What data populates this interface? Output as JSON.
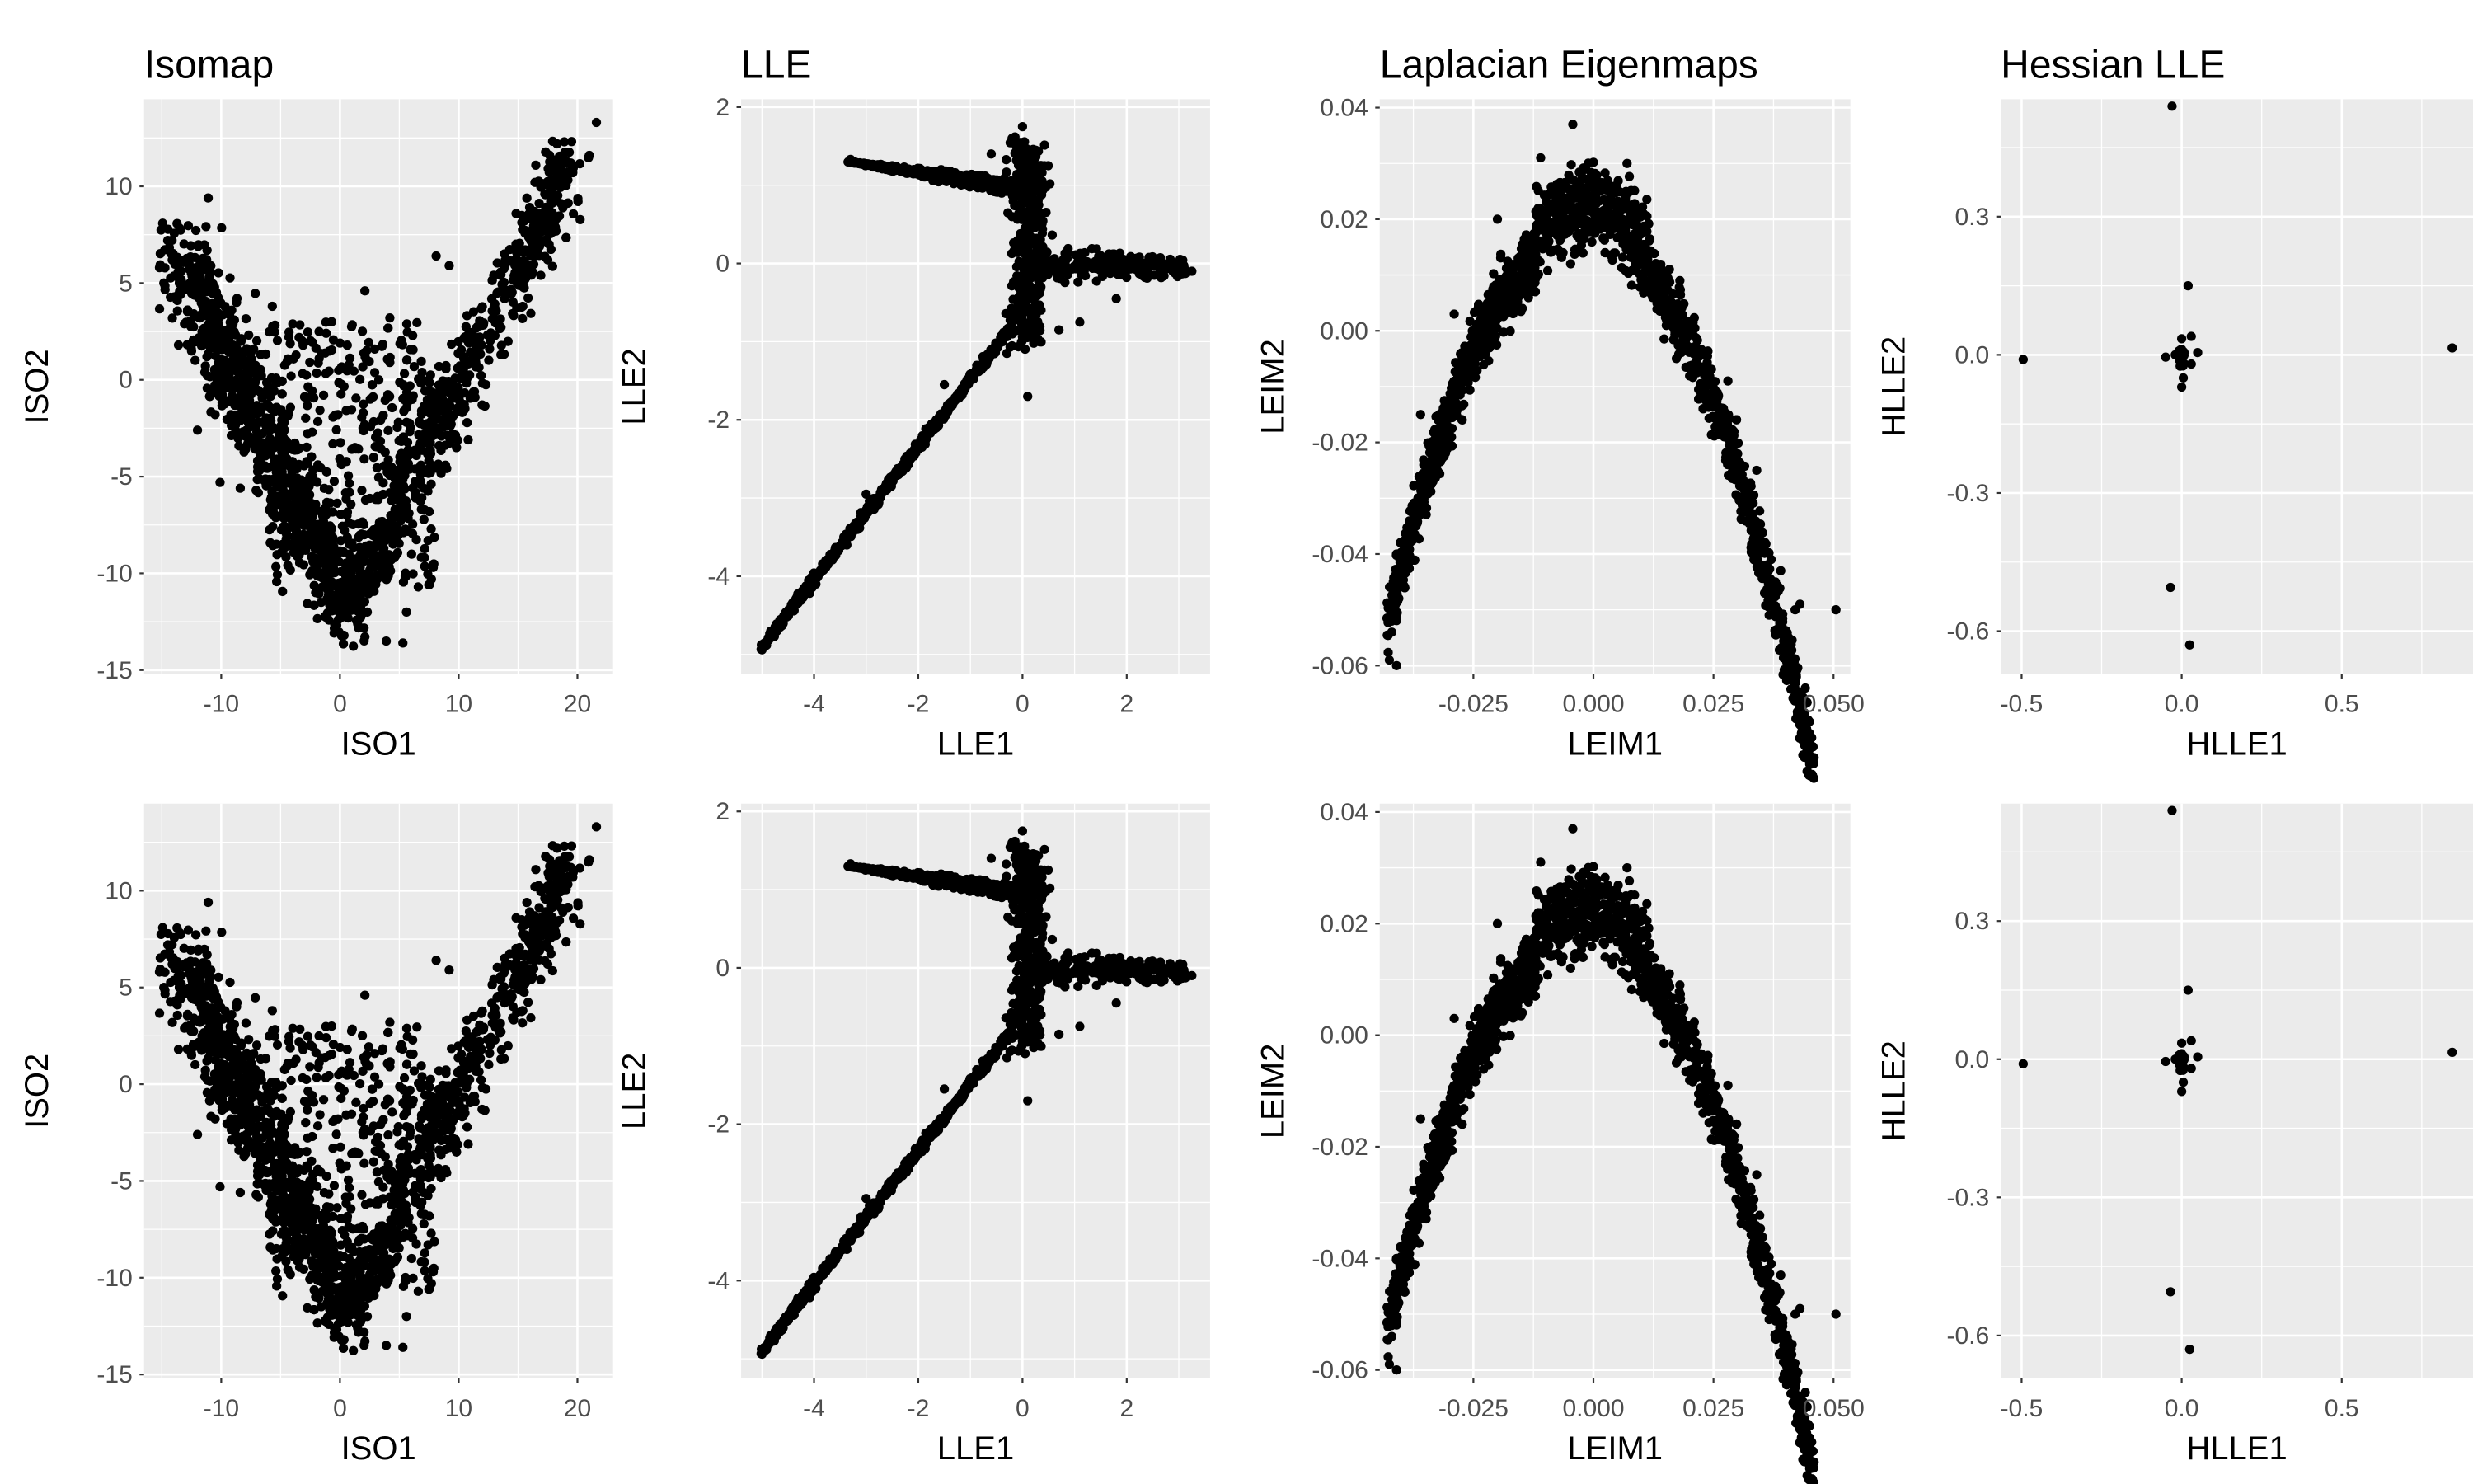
{
  "chart_data": [
    {
      "type": "scatter",
      "title": "Isomap",
      "kind": "isomap",
      "xlabel": "ISO1",
      "ylabel": "ISO2",
      "xlim": [
        -16.5,
        23
      ],
      "ylim": [
        -15.2,
        14.5
      ],
      "xticks": [
        -10,
        0,
        10,
        20
      ],
      "xtick_labels": [
        "-10",
        "0",
        "10",
        "20"
      ],
      "yticks": [
        -15,
        -10,
        -5,
        0,
        5,
        10
      ],
      "ytick_labels": [
        "-15",
        "-10",
        "-5",
        "0",
        "5",
        "10"
      ],
      "grid": true,
      "legend": "none",
      "point_color": "#000000",
      "points": [
        [
          -15.2,
          5.8
        ],
        [
          -13.6,
          1.8
        ],
        [
          -12.0,
          -2.6
        ],
        [
          -11.1,
          9.4
        ],
        [
          -10.1,
          -5.3
        ],
        [
          -8.4,
          -5.6
        ],
        [
          -5.7,
          3.8
        ],
        [
          -3.2,
          -8.7
        ],
        [
          -0.7,
          3.0
        ],
        [
          1.0,
          -11.2
        ],
        [
          2.3,
          -12.0
        ],
        [
          2.1,
          4.6
        ],
        [
          3.9,
          -13.5
        ],
        [
          4.2,
          3.2
        ],
        [
          4.2,
          0.9
        ],
        [
          5.3,
          -13.6
        ],
        [
          5.6,
          -12.0
        ],
        [
          7.7,
          -10.3
        ],
        [
          8.1,
          6.4
        ],
        [
          9.2,
          5.9
        ],
        [
          10.8,
          -3.1
        ],
        [
          12.6,
          1.6
        ],
        [
          15.4,
          3.8
        ],
        [
          17.5,
          6.2
        ],
        [
          18.9,
          12.3
        ],
        [
          21.0,
          11.6
        ],
        [
          21.6,
          13.3
        ]
      ]
    },
    {
      "type": "scatter",
      "title": "LLE",
      "kind": "lle",
      "xlabel": "LLE1",
      "ylabel": "LLE2",
      "xlim": [
        -5.4,
        3.6
      ],
      "ylim": [
        -5.25,
        2.1
      ],
      "xticks": [
        -4,
        -2,
        0,
        2
      ],
      "xtick_labels": [
        "-4",
        "-2",
        "0",
        "2"
      ],
      "yticks": [
        -4,
        -2,
        0,
        2
      ],
      "ytick_labels": [
        "-4",
        "-2",
        "0",
        "2"
      ],
      "grid": true,
      "legend": "none",
      "point_color": "#000000",
      "points": [
        [
          -5.0,
          -4.9
        ],
        [
          -3.0,
          -2.95
        ],
        [
          -1.5,
          -1.55
        ],
        [
          -3.3,
          1.33
        ],
        [
          -2.5,
          1.25
        ],
        [
          -1.5,
          1.1
        ],
        [
          -0.6,
          1.4
        ],
        [
          -0.2,
          1.6
        ],
        [
          0.0,
          1.75
        ],
        [
          1.5,
          0.1
        ],
        [
          2.2,
          -0.05
        ],
        [
          3.1,
          -0.1
        ],
        [
          3.25,
          -0.1
        ],
        [
          1.8,
          -0.45
        ],
        [
          1.1,
          -0.75
        ],
        [
          0.7,
          -0.85
        ],
        [
          0.1,
          -1.7
        ],
        [
          -0.3,
          -1.15
        ]
      ]
    },
    {
      "type": "scatter",
      "title": "Laplacian Eigenmaps",
      "kind": "leim",
      "xlabel": "LEIM1",
      "ylabel": "LEIM2",
      "xlim": [
        -0.0445,
        0.0535
      ],
      "ylim": [
        -0.0615,
        0.0415
      ],
      "xticks": [
        -0.025,
        0.0,
        0.025,
        0.05
      ],
      "xtick_labels": [
        "-0.025",
        "0.000",
        "0.025",
        "0.050"
      ],
      "yticks": [
        -0.06,
        -0.04,
        -0.02,
        0.0,
        0.02,
        0.04
      ],
      "ytick_labels": [
        "-0.06",
        "-0.04",
        "-0.02",
        "0.00",
        "0.02",
        "0.04"
      ],
      "grid": true,
      "legend": "none",
      "point_color": "#000000",
      "points": [
        [
          -0.0043,
          0.037
        ],
        [
          -0.011,
          0.031
        ],
        [
          -0.02,
          0.02
        ],
        [
          -0.029,
          0.003
        ],
        [
          -0.036,
          -0.015
        ],
        [
          -0.041,
          -0.04
        ],
        [
          -0.042,
          -0.054
        ],
        [
          -0.0425,
          -0.059
        ],
        [
          -0.041,
          -0.06
        ],
        [
          0.007,
          0.03
        ],
        [
          0.018,
          0.009
        ],
        [
          0.028,
          -0.009
        ],
        [
          0.034,
          -0.025
        ],
        [
          0.039,
          -0.043
        ],
        [
          0.042,
          -0.05
        ],
        [
          0.043,
          -0.049
        ],
        [
          0.0505,
          -0.05
        ]
      ]
    },
    {
      "type": "scatter",
      "title": "Hessian LLE",
      "kind": "hlle",
      "xlabel": "HLLE1",
      "ylabel": "HLLE2",
      "xlim": [
        -0.565,
        0.91
      ],
      "ylim": [
        -0.693,
        0.555
      ],
      "xticks": [
        -0.5,
        0.0,
        0.5
      ],
      "xtick_labels": [
        "-0.5",
        "0.0",
        "0.5"
      ],
      "yticks": [
        -0.6,
        -0.3,
        0.0,
        0.3
      ],
      "ytick_labels": [
        "-0.6",
        "-0.3",
        "0.0",
        "0.3"
      ],
      "grid": true,
      "legend": "none",
      "point_color": "#000000",
      "points": [
        [
          -0.03,
          0.54
        ],
        [
          0.02,
          0.15
        ],
        [
          0.03,
          0.04
        ],
        [
          0.0,
          0.035
        ],
        [
          -0.02,
          0.0
        ],
        [
          0.03,
          -0.02
        ],
        [
          0.005,
          -0.05
        ],
        [
          0.0,
          -0.07
        ],
        [
          -0.05,
          -0.005
        ],
        [
          0.05,
          0.005
        ],
        [
          -0.495,
          -0.01
        ],
        [
          0.845,
          0.015
        ],
        [
          -0.035,
          -0.505
        ],
        [
          0.025,
          -0.63
        ]
      ]
    },
    {
      "type": "scatter",
      "title": "",
      "kind": "isomap",
      "xlabel": "ISO1",
      "ylabel": "ISO2",
      "xlim": [
        -16.5,
        23
      ],
      "ylim": [
        -15.2,
        14.5
      ],
      "xticks": [
        -10,
        0,
        10,
        20
      ],
      "xtick_labels": [
        "-10",
        "0",
        "10",
        "20"
      ],
      "yticks": [
        -15,
        -10,
        -5,
        0,
        5,
        10
      ],
      "ytick_labels": [
        "-15",
        "-10",
        "-5",
        "0",
        "5",
        "10"
      ],
      "grid": true,
      "legend": "none",
      "point_color": "#000000",
      "points": [
        [
          -15.2,
          5.8
        ],
        [
          -13.6,
          1.8
        ],
        [
          -12.0,
          -2.6
        ],
        [
          -11.1,
          9.4
        ],
        [
          -10.1,
          -5.3
        ],
        [
          -8.4,
          -5.6
        ],
        [
          -5.7,
          3.8
        ],
        [
          -3.2,
          -8.7
        ],
        [
          -0.7,
          3.0
        ],
        [
          1.0,
          -11.2
        ],
        [
          2.3,
          -12.0
        ],
        [
          2.1,
          4.6
        ],
        [
          3.9,
          -13.5
        ],
        [
          4.2,
          3.2
        ],
        [
          4.2,
          0.9
        ],
        [
          5.3,
          -13.6
        ],
        [
          5.6,
          -12.0
        ],
        [
          7.7,
          -10.3
        ],
        [
          8.1,
          6.4
        ],
        [
          9.2,
          5.9
        ],
        [
          10.8,
          -3.1
        ],
        [
          12.6,
          1.6
        ],
        [
          15.4,
          3.8
        ],
        [
          17.5,
          6.2
        ],
        [
          18.9,
          12.3
        ],
        [
          21.0,
          11.6
        ],
        [
          21.6,
          13.3
        ]
      ]
    },
    {
      "type": "scatter",
      "title": "",
      "kind": "lle",
      "xlabel": "LLE1",
      "ylabel": "LLE2",
      "xlim": [
        -5.4,
        3.6
      ],
      "ylim": [
        -5.25,
        2.1
      ],
      "xticks": [
        -4,
        -2,
        0,
        2
      ],
      "xtick_labels": [
        "-4",
        "-2",
        "0",
        "2"
      ],
      "yticks": [
        -4,
        -2,
        0,
        2
      ],
      "ytick_labels": [
        "-4",
        "-2",
        "0",
        "2"
      ],
      "grid": true,
      "legend": "none",
      "point_color": "#000000",
      "points": [
        [
          -5.0,
          -4.9
        ],
        [
          -3.0,
          -2.95
        ],
        [
          -1.5,
          -1.55
        ],
        [
          -3.3,
          1.33
        ],
        [
          -2.5,
          1.25
        ],
        [
          -1.5,
          1.1
        ],
        [
          -0.6,
          1.4
        ],
        [
          -0.2,
          1.6
        ],
        [
          0.0,
          1.75
        ],
        [
          1.5,
          0.1
        ],
        [
          2.2,
          -0.05
        ],
        [
          3.1,
          -0.1
        ],
        [
          3.25,
          -0.1
        ],
        [
          1.8,
          -0.45
        ],
        [
          1.1,
          -0.75
        ],
        [
          0.7,
          -0.85
        ],
        [
          0.1,
          -1.7
        ],
        [
          -0.3,
          -1.15
        ]
      ]
    },
    {
      "type": "scatter",
      "title": "",
      "kind": "leim",
      "xlabel": "LEIM1",
      "ylabel": "LEIM2",
      "xlim": [
        -0.0445,
        0.0535
      ],
      "ylim": [
        -0.0615,
        0.0415
      ],
      "xticks": [
        -0.025,
        0.0,
        0.025,
        0.05
      ],
      "xtick_labels": [
        "-0.025",
        "0.000",
        "0.025",
        "0.050"
      ],
      "yticks": [
        -0.06,
        -0.04,
        -0.02,
        0.0,
        0.02,
        0.04
      ],
      "ytick_labels": [
        "-0.06",
        "-0.04",
        "-0.02",
        "0.00",
        "0.02",
        "0.04"
      ],
      "grid": true,
      "legend": "none",
      "point_color": "#000000",
      "points": [
        [
          -0.0043,
          0.037
        ],
        [
          -0.011,
          0.031
        ],
        [
          -0.02,
          0.02
        ],
        [
          -0.029,
          0.003
        ],
        [
          -0.036,
          -0.015
        ],
        [
          -0.041,
          -0.04
        ],
        [
          -0.042,
          -0.054
        ],
        [
          -0.0425,
          -0.059
        ],
        [
          -0.041,
          -0.06
        ],
        [
          0.007,
          0.03
        ],
        [
          0.018,
          0.009
        ],
        [
          0.028,
          -0.009
        ],
        [
          0.034,
          -0.025
        ],
        [
          0.039,
          -0.043
        ],
        [
          0.042,
          -0.05
        ],
        [
          0.043,
          -0.049
        ],
        [
          0.0505,
          -0.05
        ]
      ]
    },
    {
      "type": "scatter",
      "title": "",
      "kind": "hlle",
      "xlabel": "HLLE1",
      "ylabel": "HLLE2",
      "xlim": [
        -0.565,
        0.91
      ],
      "ylim": [
        -0.693,
        0.555
      ],
      "xticks": [
        -0.5,
        0.0,
        0.5
      ],
      "xtick_labels": [
        "-0.5",
        "0.0",
        "0.5"
      ],
      "yticks": [
        -0.6,
        -0.3,
        0.0,
        0.3
      ],
      "ytick_labels": [
        "-0.6",
        "-0.3",
        "0.0",
        "0.3"
      ],
      "grid": true,
      "legend": "none",
      "point_color": "#000000",
      "points": [
        [
          -0.03,
          0.54
        ],
        [
          0.02,
          0.15
        ],
        [
          0.03,
          0.04
        ],
        [
          0.0,
          0.035
        ],
        [
          -0.02,
          0.0
        ],
        [
          0.03,
          -0.02
        ],
        [
          0.005,
          -0.05
        ],
        [
          0.0,
          -0.07
        ],
        [
          -0.05,
          -0.005
        ],
        [
          0.05,
          0.005
        ],
        [
          -0.495,
          -0.01
        ],
        [
          0.845,
          0.015
        ],
        [
          -0.035,
          -0.505
        ],
        [
          0.025,
          -0.63
        ]
      ]
    }
  ]
}
